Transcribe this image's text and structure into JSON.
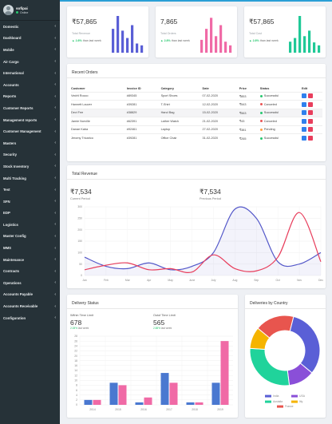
{
  "user": {
    "name": "sofipai",
    "status": "Online"
  },
  "menu": [
    "Domestic",
    "Dashboard",
    "Mobile",
    "Air Cargo",
    "International",
    "Accounts",
    "Reports",
    "Customer Reports",
    "Management reports",
    "Customer Management",
    "Masters",
    "Security",
    "Stock Inventory",
    "Multi Tracking",
    "Test",
    "SFN",
    "EDP",
    "Logistics",
    "Master Config",
    "MMS",
    "Maintenance",
    "Contracts",
    "Operations",
    "Accounts Payable",
    "Accounts Receivable",
    "Configuration"
  ],
  "stats": [
    {
      "value": "₹57,865",
      "label": "Total Revenue",
      "change": "2.8%",
      "note": "than last week",
      "color": "#5a5fd6",
      "bars": [
        0.65,
        1.0,
        0.6,
        0.4,
        0.75,
        0.25,
        0.2
      ]
    },
    {
      "value": "7,865",
      "label": "Total Orders",
      "change": "2.8%",
      "note": "than last week",
      "color": "#f06aa6",
      "bars": [
        0.35,
        0.65,
        0.95,
        0.45,
        0.75,
        0.3,
        0.2
      ]
    },
    {
      "value": "₹57,865",
      "label": "Total Cost",
      "change": "2.8%",
      "note": "than last week",
      "color": "#20c997",
      "bars": [
        0.3,
        0.4,
        1.0,
        0.45,
        0.6,
        0.28,
        0.2
      ]
    }
  ],
  "orders": {
    "title": "Recent Orders",
    "columns": [
      "Customer",
      "Invoice ID",
      "Category",
      "Date",
      "Price",
      "Status",
      "Edit"
    ],
    "rows": [
      {
        "customer": "Vedrit Rocco",
        "invoice": "#89345",
        "category": "Sport Shoes",
        "date": "07-02-2020",
        "price": "₹853",
        "status": "Successful",
        "color": "#28c76f"
      },
      {
        "customer": "Hannett Lauver",
        "invoice": "#39281",
        "category": "T-Shirt",
        "date": "12-02-2020",
        "price": "₹543",
        "status": "Canceled",
        "color": "#ea5455"
      },
      {
        "customer": "Devi Fee",
        "invoice": "#38829",
        "category": "Hand Bag",
        "date": "15-02-2020",
        "price": "₹563",
        "status": "Successful",
        "color": "#28c76f"
      },
      {
        "customer": "Jamie Norville",
        "invoice": "#62391",
        "category": "Lather Watch",
        "date": "21-02-2020",
        "price": "₹43",
        "status": "Canceled",
        "color": "#ea5455"
      },
      {
        "customer": "Danae Kaba",
        "invoice": "#92461",
        "category": "Laptop",
        "date": "27-02-2020",
        "price": "₹381",
        "status": "Pending",
        "color": "#ff9f43"
      },
      {
        "customer": "Jeromy Tricarico",
        "invoice": "#39281",
        "category": "Office Chair",
        "date": "31-02-2020",
        "price": "₹265",
        "status": "Successful",
        "color": "#28c76f"
      }
    ]
  },
  "revenue": {
    "title": "Total Revenue",
    "current_value": "₹7,534",
    "current_label": "Current Period",
    "previous_value": "₹7,534",
    "previous_label": "Previous Period"
  },
  "delivery": {
    "title": "Delivery Status",
    "within_label": "Within Time Limit",
    "within_value": "678",
    "within_change": "2.08%",
    "within_note": "last week",
    "outof_label": "Outof Time Limit",
    "outof_value": "565",
    "outof_change": "2.88%",
    "outof_note": "last week"
  },
  "country": {
    "title": "Deliveries by Country"
  },
  "chart_data": [
    {
      "type": "area",
      "title": "Total Revenue",
      "categories": [
        "Jan",
        "Feb",
        "Mar",
        "Apr",
        "May",
        "June",
        "July",
        "Aug",
        "Sep",
        "Oct",
        "Nov",
        "Dec"
      ],
      "ylim": [
        0,
        300
      ],
      "yticks": [
        0,
        50,
        100,
        150,
        200,
        250,
        300
      ],
      "series": [
        {
          "color": "#5458c9",
          "values": [
            80,
            40,
            30,
            55,
            25,
            40,
            100,
            290,
            250,
            60,
            50,
            100
          ]
        },
        {
          "color": "#e83e5c",
          "values": [
            25,
            45,
            55,
            25,
            30,
            15,
            90,
            30,
            20,
            80,
            275,
            60
          ]
        }
      ]
    },
    {
      "type": "bar",
      "title": "Delivery Status",
      "categories": [
        "2014",
        "2015",
        "2016",
        "2017",
        "2018",
        "2019"
      ],
      "ylim": [
        0,
        28
      ],
      "yticks": [
        0,
        2,
        4,
        6,
        8,
        10,
        12,
        14,
        16,
        18,
        20,
        22,
        24,
        26,
        28
      ],
      "series": [
        {
          "color": "#4a78d0",
          "values": [
            2,
            9,
            1,
            13,
            1,
            9
          ]
        },
        {
          "color": "#f06aa6",
          "values": [
            2,
            8,
            3,
            9,
            1,
            26
          ]
        }
      ]
    },
    {
      "type": "pie",
      "title": "Deliveries by Country",
      "legend": [
        "India",
        "USA",
        "Austalia",
        "Itly",
        "France"
      ],
      "legend_colors": [
        "#5a5fd6",
        "#8a4fd8",
        "#20d39b",
        "#f5b400",
        "#e8554e"
      ],
      "slices": [
        {
          "label": "India",
          "value": 32,
          "color": "#5a5fd6"
        },
        {
          "label": "USA",
          "value": 12,
          "color": "#8a4fd8"
        },
        {
          "label": "Austalia",
          "value": 28,
          "color": "#20d39b"
        },
        {
          "label": "Itly",
          "value": 10,
          "color": "#f5b400"
        },
        {
          "label": "France",
          "value": 18,
          "color": "#e8554e"
        }
      ]
    }
  ]
}
